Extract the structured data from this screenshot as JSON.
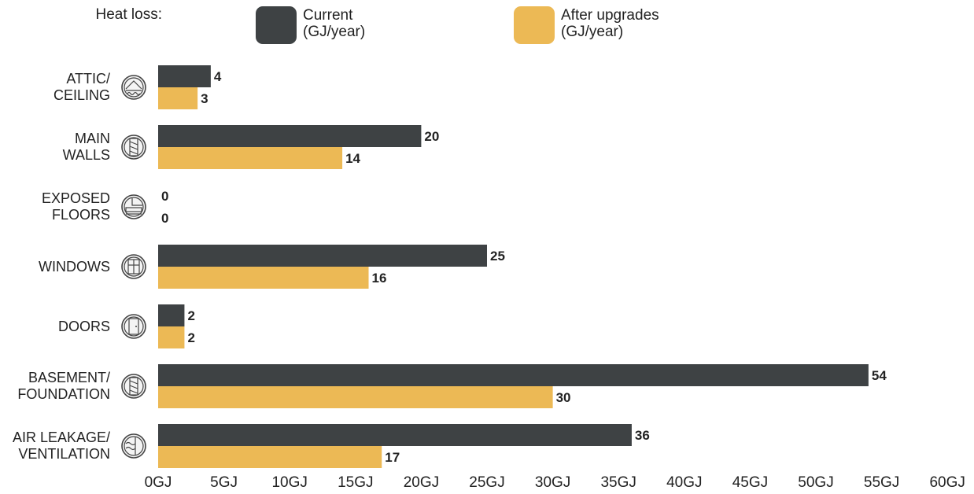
{
  "chart_data": {
    "type": "bar",
    "orientation": "horizontal",
    "legend_title": "Heat loss:",
    "legend_position": "top",
    "categories": [
      {
        "lines": [
          "ATTIC/",
          "CEILING"
        ],
        "icon": "attic-icon"
      },
      {
        "lines": [
          "MAIN",
          "WALLS"
        ],
        "icon": "wall-icon"
      },
      {
        "lines": [
          "EXPOSED",
          "FLOORS"
        ],
        "icon": "floor-icon"
      },
      {
        "lines": [
          "WINDOWS"
        ],
        "icon": "window-icon"
      },
      {
        "lines": [
          "DOORS"
        ],
        "icon": "door-icon"
      },
      {
        "lines": [
          "BASEMENT/",
          "FOUNDATION"
        ],
        "icon": "foundation-icon"
      },
      {
        "lines": [
          "AIR LEAKAGE/",
          "VENTILATION"
        ],
        "icon": "ventilation-icon"
      }
    ],
    "series": [
      {
        "name_lines": [
          "Current",
          "(GJ/year)"
        ],
        "color": "#3e4244",
        "values": [
          4,
          20,
          0,
          25,
          2,
          54,
          36
        ]
      },
      {
        "name_lines": [
          "After upgrades",
          "(GJ/year)"
        ],
        "color": "#ecb955",
        "values": [
          3,
          14,
          0,
          16,
          2,
          30,
          17
        ]
      }
    ],
    "x_ticks": [
      "0GJ",
      "5GJ",
      "10GJ",
      "15GJ",
      "20GJ",
      "25GJ",
      "30GJ",
      "35GJ",
      "40GJ",
      "45GJ",
      "50GJ",
      "55GJ",
      "60GJ"
    ],
    "xlim": [
      0,
      60
    ],
    "grid": false
  }
}
